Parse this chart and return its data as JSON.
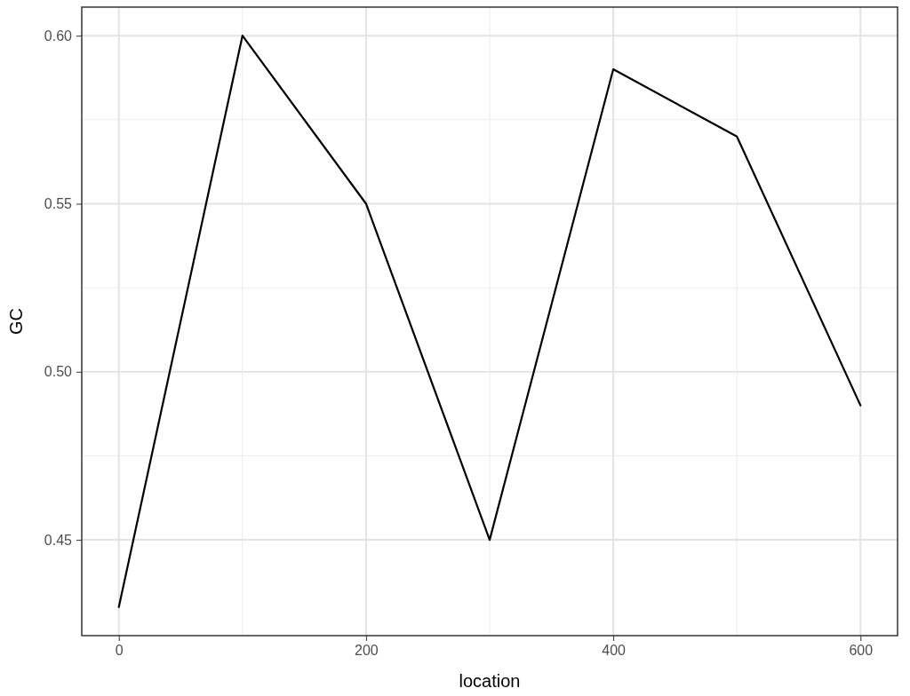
{
  "chart_data": {
    "type": "line",
    "xlabel": "location",
    "ylabel": "GC",
    "x": [
      0,
      100,
      200,
      300,
      400,
      500,
      600
    ],
    "series": [
      {
        "color": "#000000",
        "values": [
          0.43,
          0.6,
          0.55,
          0.45,
          0.59,
          0.57,
          0.49
        ]
      }
    ],
    "xlim": [
      -30,
      630
    ],
    "xticks": [
      0,
      200,
      400,
      600
    ],
    "ylim": [
      0.4215,
      0.6085
    ],
    "yticks": [
      {
        "value": 0.45,
        "label": "0.45"
      },
      {
        "value": 0.5,
        "label": "0.50"
      },
      {
        "value": 0.55,
        "label": "0.55"
      },
      {
        "value": 0.6,
        "label": "0.60"
      }
    ],
    "grid": true,
    "marker": "none",
    "line_style": "solid"
  }
}
